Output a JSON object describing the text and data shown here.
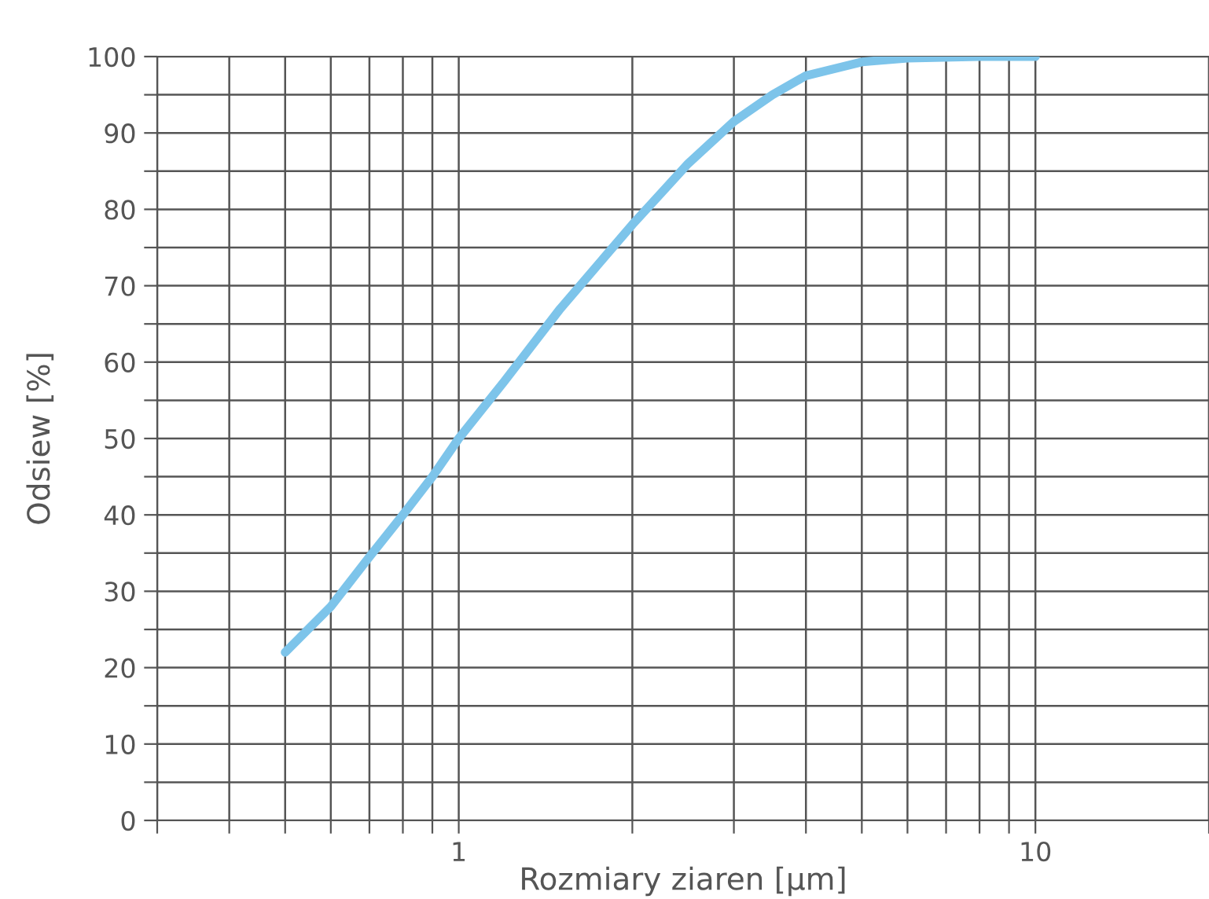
{
  "chart_data": {
    "type": "line",
    "xlabel": "Rozmiary ziaren [µm]",
    "ylabel": "Odsiew [%]",
    "log": "x",
    "x": [
      0.5,
      0.6,
      0.7,
      0.8,
      0.9,
      1,
      1.2,
      1.5,
      2,
      2.5,
      3,
      3.5,
      4,
      5,
      6,
      8,
      10
    ],
    "series": [
      {
        "color": "#7dc4ea",
        "values": [
          22,
          28,
          34.5,
          40,
          45,
          50,
          57.5,
          67,
          78,
          86,
          91.5,
          95,
          97.5,
          99.3,
          99.8,
          100,
          100
        ]
      }
    ],
    "xlim": [
      0.3,
      20
    ],
    "ylim": [
      0,
      100
    ],
    "xticks": [
      {
        "value": 0.3,
        "label": null
      },
      {
        "value": 0.4,
        "label": null
      },
      {
        "value": 0.5,
        "label": null
      },
      {
        "value": 0.6,
        "label": null
      },
      {
        "value": 0.7,
        "label": null
      },
      {
        "value": 0.8,
        "label": null
      },
      {
        "value": 0.9,
        "label": null
      },
      1,
      {
        "value": 2,
        "label": null
      },
      {
        "value": 3,
        "label": null
      },
      {
        "value": 4,
        "label": null
      },
      {
        "value": 5,
        "label": null
      },
      {
        "value": 6,
        "label": null
      },
      {
        "value": 7,
        "label": null
      },
      {
        "value": 8,
        "label": null
      },
      {
        "value": 9,
        "label": null
      },
      10,
      {
        "value": 20,
        "label": null
      }
    ],
    "yticks": [
      0,
      {
        "value": 5,
        "label": null
      },
      10,
      {
        "value": 15,
        "label": null
      },
      20,
      {
        "value": 25,
        "label": null
      },
      30,
      {
        "value": 35,
        "label": null
      },
      40,
      {
        "value": 45,
        "label": null
      },
      50,
      {
        "value": 55,
        "label": null
      },
      60,
      {
        "value": 65,
        "label": null
      },
      70,
      {
        "value": 75,
        "label": null
      },
      80,
      {
        "value": 85,
        "label": null
      },
      90,
      {
        "value": 95,
        "label": null
      },
      100
    ],
    "grid": true,
    "marker": "none",
    "line_style": "solid"
  }
}
